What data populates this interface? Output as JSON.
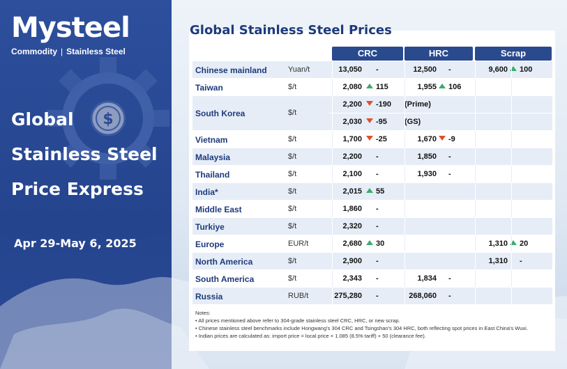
{
  "brand": {
    "logo": "Mysteel",
    "sub_left": "Commodity",
    "sub_sep": "|",
    "sub_right": "Stainless Steel"
  },
  "headline": {
    "line1": "Global",
    "line2": "Stainless Steel",
    "line3": "Price Express"
  },
  "date_range": "Apr 29-May 6, 2025",
  "title": "Global Stainless Steel Prices",
  "columns": {
    "crc": "CRC",
    "hrc": "HRC",
    "scrap": "Scrap"
  },
  "rows": [
    {
      "country": "Chinese mainland",
      "unit": "Yuan/t",
      "crc": "13,050",
      "crc_chg": "-",
      "crc_dir": "none",
      "hrc": "12,500",
      "hrc_chg": "-",
      "hrc_dir": "none",
      "scrap": "9,600",
      "scrap_chg": "100",
      "scrap_dir": "up"
    },
    {
      "country": "Taiwan",
      "unit": "$/t",
      "crc": "2,080",
      "crc_chg": "115",
      "crc_dir": "up",
      "hrc": "1,955",
      "hrc_chg": "106",
      "hrc_dir": "up",
      "scrap": "",
      "scrap_chg": "",
      "scrap_dir": "none"
    },
    {
      "country": "South Korea",
      "unit": "$/t",
      "crc": "2,200",
      "crc_chg": "-190",
      "crc_dir": "down",
      "note": "(Prime)",
      "crc2": "2,030",
      "crc2_chg": "-95",
      "crc2_dir": "down",
      "note2": "(GS)"
    },
    {
      "country": "Vietnam",
      "unit": "$/t",
      "crc": "1,700",
      "crc_chg": "-25",
      "crc_dir": "down",
      "hrc": "1,670",
      "hrc_chg": "-9",
      "hrc_dir": "down",
      "scrap": "",
      "scrap_chg": "",
      "scrap_dir": "none"
    },
    {
      "country": "Malaysia",
      "unit": "$/t",
      "crc": "2,200",
      "crc_chg": "-",
      "crc_dir": "none",
      "hrc": "1,850",
      "hrc_chg": "-",
      "hrc_dir": "none",
      "scrap": "",
      "scrap_chg": "",
      "scrap_dir": "none"
    },
    {
      "country": "Thailand",
      "unit": "$/t",
      "crc": "2,100",
      "crc_chg": "-",
      "crc_dir": "none",
      "hrc": "1,930",
      "hrc_chg": "-",
      "hrc_dir": "none",
      "scrap": "",
      "scrap_chg": "",
      "scrap_dir": "none"
    },
    {
      "country": "India*",
      "unit": "$/t",
      "crc": "2,015",
      "crc_chg": "55",
      "crc_dir": "up",
      "hrc": "",
      "hrc_chg": "",
      "hrc_dir": "none",
      "scrap": "",
      "scrap_chg": "",
      "scrap_dir": "none"
    },
    {
      "country": "Middle East",
      "unit": "$/t",
      "crc": "1,860",
      "crc_chg": "-",
      "crc_dir": "none",
      "hrc": "",
      "hrc_chg": "",
      "hrc_dir": "none",
      "scrap": "",
      "scrap_chg": "",
      "scrap_dir": "none"
    },
    {
      "country": "Turkiye",
      "unit": "$/t",
      "crc": "2,320",
      "crc_chg": "-",
      "crc_dir": "none",
      "hrc": "",
      "hrc_chg": "",
      "hrc_dir": "none",
      "scrap": "",
      "scrap_chg": "",
      "scrap_dir": "none"
    },
    {
      "country": "Europe",
      "unit": "EUR/t",
      "crc": "2,680",
      "crc_chg": "30",
      "crc_dir": "up",
      "hrc": "",
      "hrc_chg": "",
      "hrc_dir": "none",
      "scrap": "1,310",
      "scrap_chg": "20",
      "scrap_dir": "up"
    },
    {
      "country": "North America",
      "unit": "$/t",
      "crc": "2,900",
      "crc_chg": "-",
      "crc_dir": "none",
      "hrc": "",
      "hrc_chg": "",
      "hrc_dir": "none",
      "scrap": "1,310",
      "scrap_chg": "-",
      "scrap_dir": "none"
    },
    {
      "country": "South America",
      "unit": "$/t",
      "crc": "2,343",
      "crc_chg": "-",
      "crc_dir": "none",
      "hrc": "1,834",
      "hrc_chg": "-",
      "hrc_dir": "none",
      "scrap": "",
      "scrap_chg": "",
      "scrap_dir": "none"
    },
    {
      "country": "Russia",
      "unit": "RUB/t",
      "crc": "275,280",
      "crc_chg": "-",
      "crc_dir": "none",
      "hrc": "268,060",
      "hrc_chg": "-",
      "hrc_dir": "none",
      "scrap": "",
      "scrap_chg": "",
      "scrap_dir": "none"
    }
  ],
  "notes": {
    "heading": "Notes:",
    "lines": [
      "• All prices mentioned above refer to 304-grade stainless steel CRC, HRC, or new scrap.",
      "• Chinese stainless steel benchmarks include Hongwang's 304 CRC and Tsingshan's 304 HRC, both reflecting spot prices in East China's Wuxi.",
      "• Indian prices are calculated as: import price = local price × 1.085 (8.5% tariff) + 50 (clearance fee)."
    ]
  },
  "colors": {
    "brand_blue": "#2d4f9c",
    "header_blue": "#2a4a8e",
    "up_green": "#3daa6e",
    "down_red": "#e0502a"
  }
}
